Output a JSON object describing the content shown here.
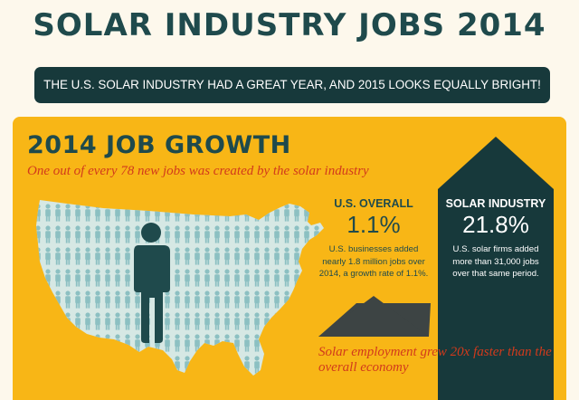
{
  "title": "SOLAR INDUSTRY JOBS 2014",
  "banner": "THE U.S. SOLAR INDUSTRY HAD A GREAT YEAR, AND 2015 LOOKS EQUALLY BRIGHT!",
  "section": {
    "title": "2014 JOB GROWTH",
    "subtitle": "One out of every 78 new jobs was created by the solar industry",
    "jobs_ratio": {
      "one_of": 78
    }
  },
  "stats": {
    "us_overall": {
      "label": "U.S. OVERALL",
      "value": "1.1%",
      "description_lines": [
        "U.S. businesses added",
        "nearly 1.8 million jobs over",
        "2014, a growth rate of 1.1%."
      ]
    },
    "solar_industry": {
      "label": "SOLAR INDUSTRY",
      "value": "21.8%",
      "description_lines": [
        "U.S. solar firms added",
        "more than 31,000 jobs",
        "over that same period."
      ]
    }
  },
  "footnote": "Solar employment grew 20x faster than the overall economy",
  "colors": {
    "background": "#fdf8ec",
    "panel": "#f8b616",
    "dark_teal": "#1f4a4c",
    "banner": "#17393b",
    "accent_red": "#d23a1c",
    "map_light": "#d6e8e4",
    "person_light": "#8cc0c2",
    "us_bar": "#3d4444"
  },
  "icons": {
    "person": "person-icon",
    "map": "us-map"
  }
}
